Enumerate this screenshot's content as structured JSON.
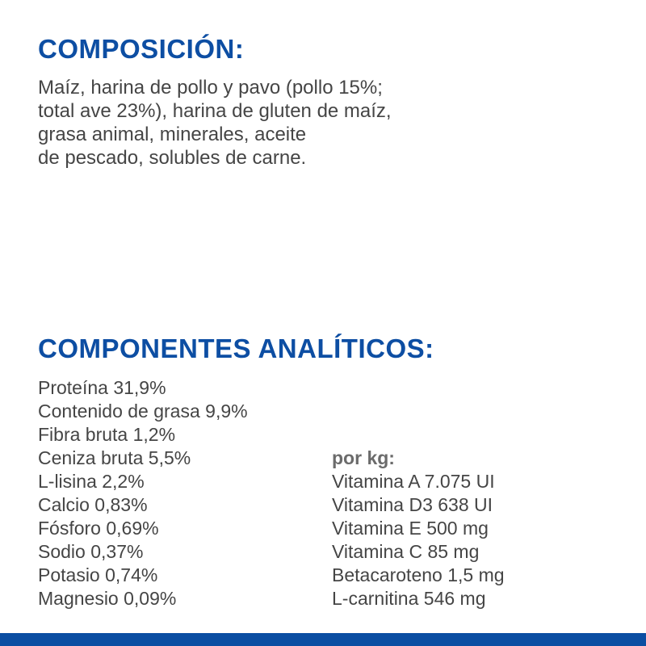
{
  "composition": {
    "title": "COMPOSICIÓN:",
    "lines": [
      "Maíz, harina de pollo y pavo (pollo 15%;",
      "total ave 23%), harina de gluten de maíz,",
      "grasa animal, minerales, aceite",
      "de pescado, solubles de carne."
    ]
  },
  "analytics": {
    "title": "COMPONENTES ANALÍTICOS:",
    "items": [
      "Proteína 31,9%",
      "Contenido de grasa 9,9%",
      "Fibra bruta 1,2%",
      "Ceniza bruta 5,5%",
      "L-lisina 2,2%",
      "Calcio 0,83%",
      "Fósforo 0,69%",
      "Sodio 0,37%",
      "Potasio 0,74%",
      "Magnesio 0,09%"
    ],
    "per_kg_label": "por kg:",
    "per_kg_items": [
      "Vitamina A 7.075 UI",
      "Vitamina D3 638 UI",
      "Vitamina E 500 mg",
      "Vitamina C 85 mg",
      "Betacaroteno 1,5 mg",
      "L-carnitina 546 mg"
    ]
  },
  "colors": {
    "heading": "#0d4ea3",
    "text": "#454545",
    "bottom_bar": "#0b4ea2"
  }
}
